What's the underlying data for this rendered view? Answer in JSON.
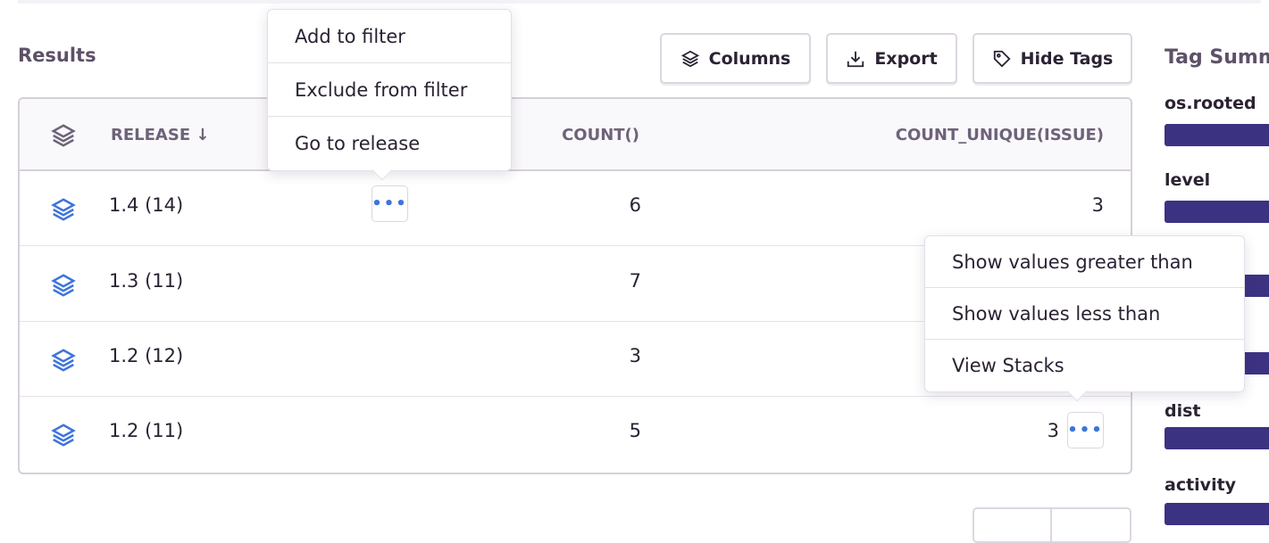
{
  "results_title": "Results",
  "toolbar": {
    "columns": "Columns",
    "export": "Export",
    "hide_tags": "Hide Tags"
  },
  "table": {
    "headers": {
      "release": "RELEASE ↓",
      "count": "COUNT()",
      "count_unique": "COUNT_UNIQUE(ISSUE)"
    },
    "rows": [
      {
        "release": "1.4 (14)",
        "count": "6",
        "count_unique": "3"
      },
      {
        "release": "1.3 (11)",
        "count": "7",
        "count_unique": ""
      },
      {
        "release": "1.2 (12)",
        "count": "3",
        "count_unique": ""
      },
      {
        "release": "1.2 (11)",
        "count": "5",
        "count_unique": "3"
      }
    ]
  },
  "release_menu": {
    "items": [
      "Add to filter",
      "Exclude from filter",
      "Go to release"
    ]
  },
  "value_menu": {
    "items": [
      "Show values greater than",
      "Show values less than",
      "View Stacks"
    ]
  },
  "tag_summary": {
    "title": "Tag Summary",
    "tags": [
      "os.rooted",
      "level",
      "dist",
      "activity"
    ]
  },
  "colors": {
    "accent": "#3d74db",
    "bar": "#3c3282"
  }
}
